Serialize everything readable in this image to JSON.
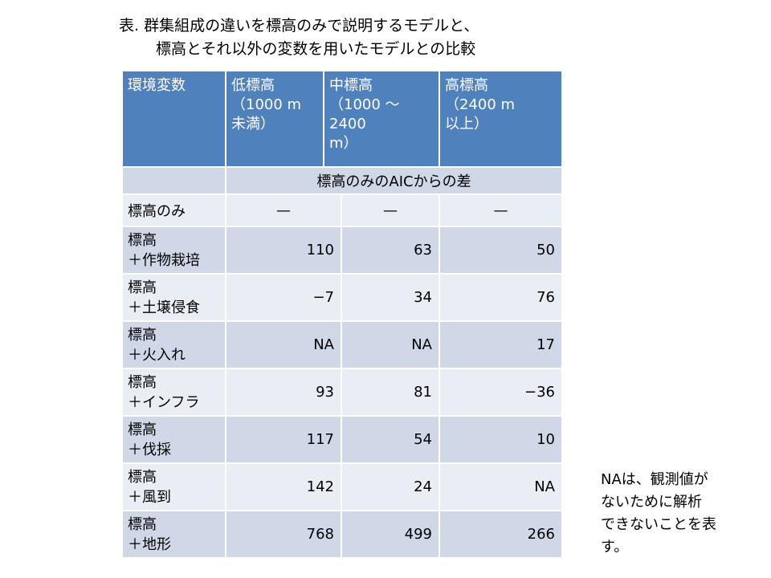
{
  "title": {
    "line1": "表. 群集組成の違いを標高のみで説明するモデルと、",
    "line2": "標高とそれ以外の変数を用いたモデルとの比較"
  },
  "table": {
    "headers": [
      {
        "main": "環境変数",
        "sub": ""
      },
      {
        "main": "低標高",
        "sub": "（1000 m\n未満）"
      },
      {
        "main": "中標高",
        "sub": "（1000 〜2400\nm）"
      },
      {
        "main": "高標高",
        "sub": "（2400 m\n以上）"
      }
    ],
    "subheader": "標高のみのAICからの差",
    "baseline_row": {
      "label": "標高のみ",
      "low": "—",
      "mid": "—",
      "high": "—"
    },
    "rows": [
      {
        "label1": "標高",
        "label2": "＋作物栽培",
        "low": "110",
        "mid": "63",
        "high": "50"
      },
      {
        "label1": "標高",
        "label2": "＋土壌侵食",
        "low": "−7",
        "mid": "34",
        "high": "76"
      },
      {
        "label1": "標高",
        "label2": "＋火入れ",
        "low": "NA",
        "mid": "NA",
        "high": "17"
      },
      {
        "label1": "標高",
        "label2": "＋インフラ",
        "low": "93",
        "mid": "81",
        "high": "−36"
      },
      {
        "label1": "標高",
        "label2": "＋伐採",
        "low": "117",
        "mid": "54",
        "high": "10"
      },
      {
        "label1": "標高",
        "label2": "＋風到",
        "low": "142",
        "mid": "24",
        "high": "NA"
      },
      {
        "label1": "標高",
        "label2": "＋地形",
        "low": "768",
        "mid": "499",
        "high": "266"
      }
    ]
  },
  "note": "NAは、観測値が\nないために解析\nできないことを表\nす。",
  "colors": {
    "header_bg": "#4f81bd",
    "row_dark": "#d0d8e8",
    "row_light": "#e9edf4"
  }
}
